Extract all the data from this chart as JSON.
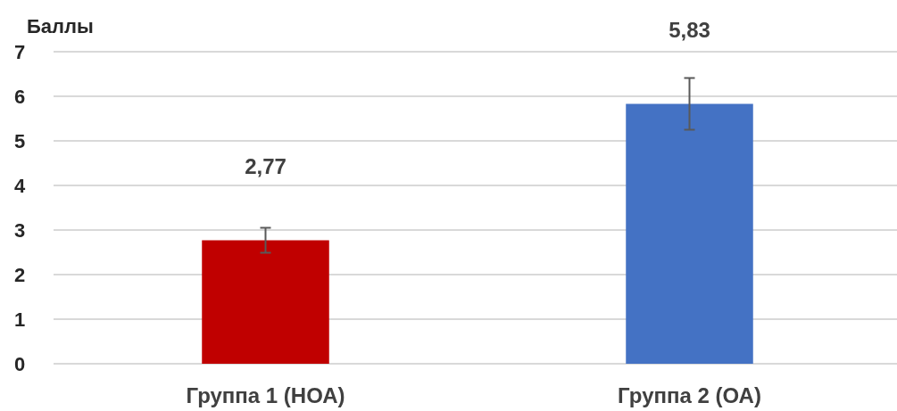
{
  "chart_data": {
    "type": "bar",
    "ylabel": "Баллы",
    "categories": [
      "Группа 1 (НОА)",
      "Группа 2  (ОА)"
    ],
    "values": [
      2.77,
      5.83
    ],
    "colors": [
      "#c00000",
      "#4472c4"
    ],
    "errors": [
      0.28,
      0.58
    ],
    "value_labels": [
      "2,77",
      "5,83"
    ],
    "ylim": [
      0,
      7
    ],
    "yticks": [
      0,
      1,
      2,
      3,
      4,
      5,
      6,
      7
    ],
    "grid": "y"
  }
}
